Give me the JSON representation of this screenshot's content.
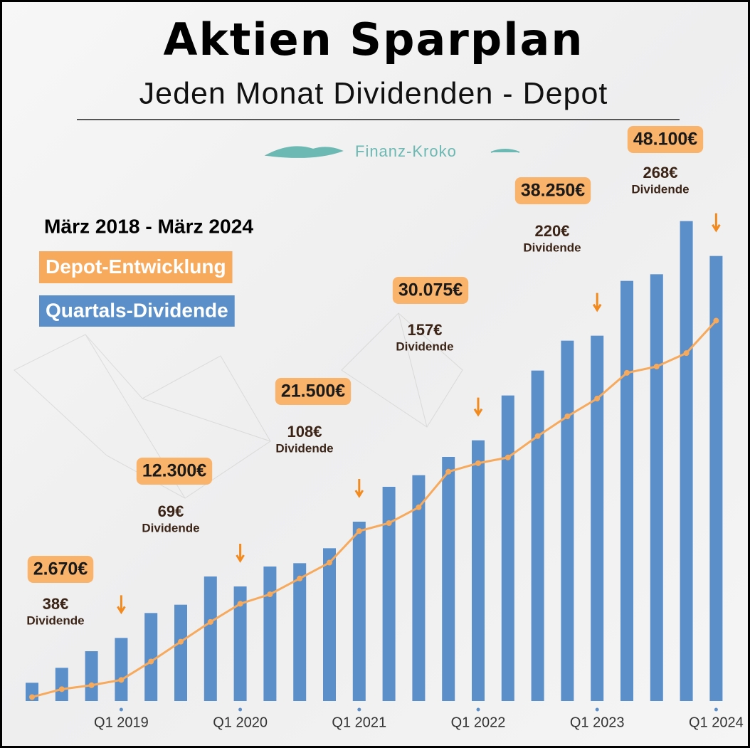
{
  "chart_data": {
    "type": "bar",
    "title": "Aktien Sparplan",
    "subtitle": "Jeden Monat Dividenden - Depot",
    "brand": "Finanz-Kroko",
    "period": "März 2018 - März 2024",
    "dividend_caption": "Dividende",
    "categories": [
      null,
      null,
      null,
      "Q1 2019",
      null,
      null,
      null,
      "Q1 2020",
      null,
      null,
      null,
      "Q1 2021",
      null,
      null,
      null,
      "Q1 2022",
      null,
      null,
      null,
      "Q1 2023",
      null,
      null,
      null,
      "Q1 2024"
    ],
    "series": [
      {
        "name": "Quartals-Dividende",
        "color": "#5b8fca",
        "type": "bar",
        "values": [
          11,
          20,
          30,
          38,
          53,
          58,
          75,
          69,
          81,
          83,
          92,
          108,
          129,
          136,
          147,
          157,
          184,
          199,
          217,
          220,
          253,
          257,
          289,
          268
        ],
        "value_labels": [
          null,
          null,
          null,
          "38€",
          null,
          null,
          null,
          "69€",
          null,
          null,
          null,
          "108€",
          null,
          null,
          null,
          "157€",
          null,
          null,
          null,
          "220€",
          null,
          null,
          null,
          "268€"
        ]
      },
      {
        "name": "Depot-Entwicklung",
        "color": "#f7a95c",
        "type": "line",
        "axis": "y2",
        "values": [
          500,
          1500,
          2000,
          2670,
          5000,
          7500,
          10000,
          12300,
          13500,
          15500,
          17500,
          21500,
          22500,
          24500,
          29000,
          30075,
          30800,
          33500,
          36000,
          38250,
          41500,
          42300,
          44000,
          48100
        ],
        "value_labels": [
          null,
          null,
          null,
          "2.670€",
          null,
          null,
          null,
          "12.300€",
          null,
          null,
          null,
          "21.500€",
          null,
          null,
          null,
          "30.075€",
          null,
          null,
          null,
          "38.250€",
          null,
          null,
          null,
          "48.100€"
        ]
      }
    ],
    "ylim": [
      0,
      300
    ],
    "y2lim": [
      0,
      63000
    ]
  }
}
